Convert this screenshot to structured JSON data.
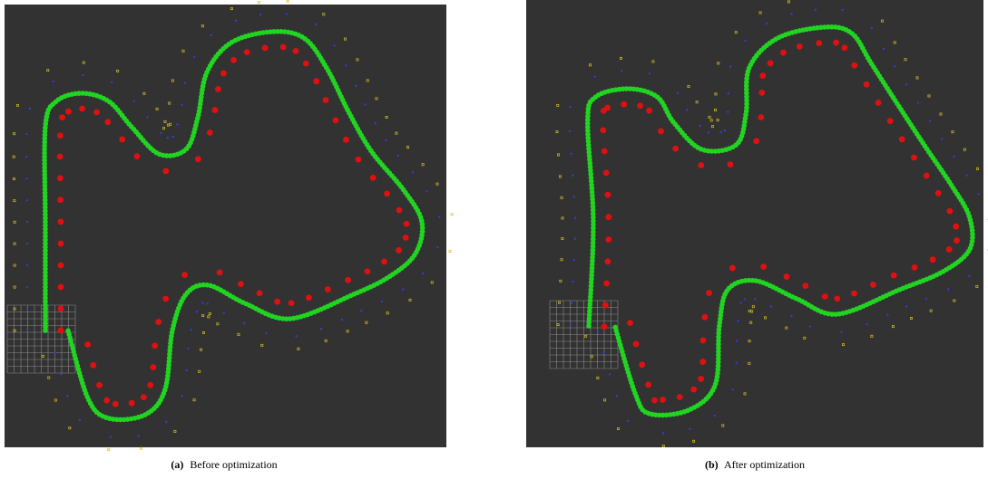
{
  "figure": {
    "panels": [
      {
        "label": "(a)",
        "caption": "Before optimization"
      },
      {
        "label": "(b)",
        "caption": "After optimization"
      }
    ]
  }
}
